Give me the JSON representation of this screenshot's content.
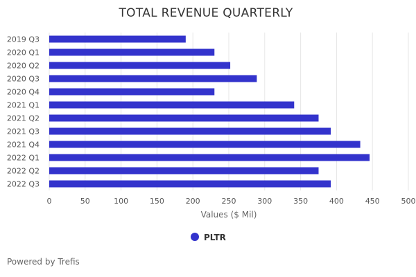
{
  "chart_data": {
    "type": "bar",
    "orientation": "horizontal",
    "title": "TOTAL REVENUE QUARTERLY",
    "xlabel": "Values ($ Mil)",
    "ylabel": "",
    "categories": [
      "2019 Q3",
      "2020 Q1",
      "2020 Q2",
      "2020 Q3",
      "2020 Q4",
      "2021 Q1",
      "2021 Q2",
      "2021 Q3",
      "2021 Q4",
      "2022 Q1",
      "2022 Q2",
      "2022 Q3"
    ],
    "series": [
      {
        "name": "PLTR",
        "color": "#3333cc",
        "values": [
          190,
          230,
          252,
          289,
          230,
          341,
          375,
          392,
          433,
          446,
          375,
          392
        ]
      }
    ],
    "xlim": [
      0,
      500
    ],
    "xticks": [
      "0",
      "50",
      "100",
      "150",
      "200",
      "250",
      "300",
      "350",
      "400",
      "450",
      "500"
    ],
    "grid": true,
    "legend": "bottom-center"
  },
  "footer": {
    "credit": "Powered by Trefis"
  }
}
